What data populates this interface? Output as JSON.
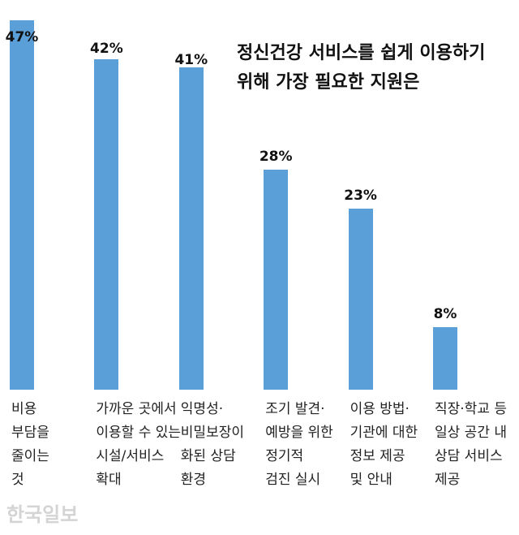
{
  "chart_data": {
    "type": "bar",
    "title": "정신건강 서비스를 쉽게 이용하기\n위해 가장 필요한 지원은",
    "categories": [
      "비용\n부담을\n줄이는\n것",
      "가까운 곳에서\n이용할 수 있는\n시설/서비스\n확대",
      "익명성·\n비밀보장이\n화된 상담\n환경",
      "조기 발견·\n예방을 위한\n정기적\n검진 실시",
      "이용 방법·\n기관에 대한\n정보 제공\n및 안내",
      "직장·학교 등\n일상 공간 내\n상담 서비스\n제공"
    ],
    "values": [
      47,
      42,
      41,
      28,
      23,
      8
    ],
    "value_labels": [
      "47%",
      "42%",
      "41%",
      "28%",
      "23%",
      "8%"
    ],
    "color": "#5b9fd8",
    "source": "한국일보"
  }
}
